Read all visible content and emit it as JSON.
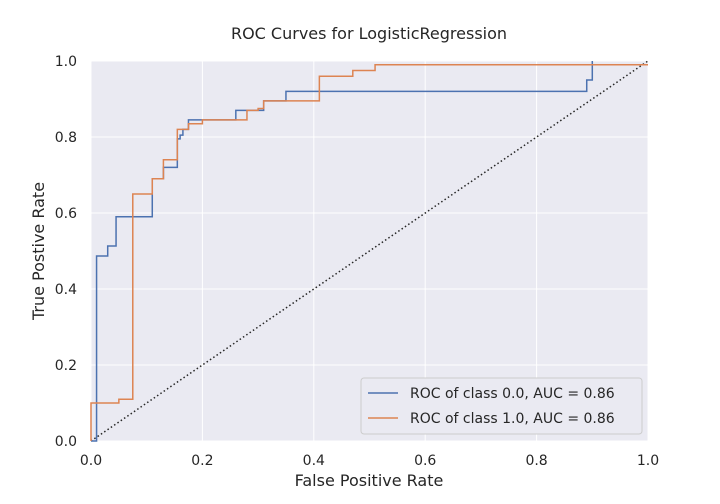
{
  "chart_data": {
    "type": "line",
    "title": "ROC Curves for LogisticRegression",
    "xlabel": "False Positive Rate",
    "ylabel": "True Postive Rate",
    "xlim": [
      0.0,
      1.0
    ],
    "ylim": [
      0.0,
      1.0
    ],
    "xticks": [
      "0.0",
      "0.2",
      "0.4",
      "0.6",
      "0.8",
      "1.0"
    ],
    "yticks": [
      "0.0",
      "0.2",
      "0.4",
      "0.6",
      "0.8",
      "1.0"
    ],
    "grid": true,
    "legend_position": "lower-right",
    "series": [
      {
        "name": "ROC of class 0.0, AUC = 0.86",
        "color": "#4c72b0",
        "x": [
          0,
          0.01,
          0.01,
          0.03,
          0.03,
          0.045,
          0.045,
          0.11,
          0.11,
          0.13,
          0.13,
          0.155,
          0.155,
          0.16,
          0.16,
          0.165,
          0.165,
          0.175,
          0.175,
          0.26,
          0.26,
          0.31,
          0.31,
          0.35,
          0.35,
          0.89,
          0.89,
          0.9,
          0.9
        ],
        "y": [
          0,
          0,
          0.487,
          0.487,
          0.513,
          0.513,
          0.59,
          0.59,
          0.69,
          0.69,
          0.72,
          0.72,
          0.795,
          0.795,
          0.805,
          0.805,
          0.82,
          0.82,
          0.845,
          0.845,
          0.87,
          0.87,
          0.895,
          0.895,
          0.92,
          0.92,
          0.95,
          0.95,
          1.0
        ]
      },
      {
        "name": "ROC of class 1.0, AUC = 0.86",
        "color": "#dd8452",
        "x": [
          0,
          0,
          0.05,
          0.05,
          0.075,
          0.075,
          0.11,
          0.11,
          0.13,
          0.13,
          0.155,
          0.155,
          0.175,
          0.175,
          0.2,
          0.2,
          0.28,
          0.28,
          0.3,
          0.3,
          0.31,
          0.31,
          0.41,
          0.41,
          0.47,
          0.47,
          0.51,
          0.51,
          1.0
        ],
        "y": [
          0,
          0.1,
          0.1,
          0.11,
          0.11,
          0.65,
          0.65,
          0.69,
          0.69,
          0.74,
          0.74,
          0.82,
          0.82,
          0.835,
          0.835,
          0.845,
          0.845,
          0.87,
          0.87,
          0.875,
          0.875,
          0.895,
          0.895,
          0.96,
          0.96,
          0.975,
          0.975,
          0.99,
          0.99
        ]
      }
    ],
    "reference_line": {
      "x": [
        0,
        1
      ],
      "y": [
        0,
        1
      ],
      "color": "#262626",
      "style": "dotted"
    }
  }
}
